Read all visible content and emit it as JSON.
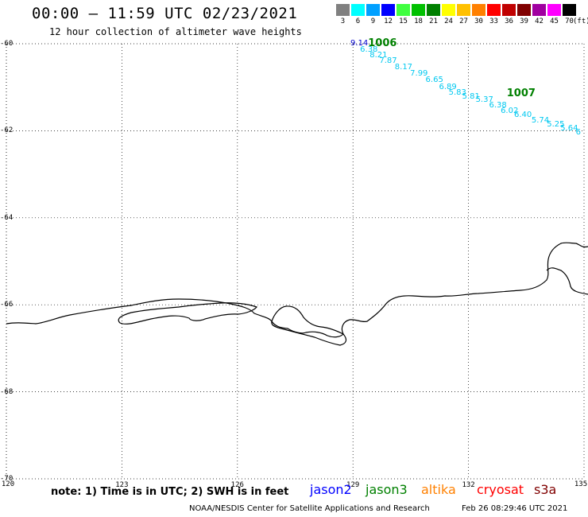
{
  "header": {
    "title": "00:00 – 11:59 UTC 02/23/2021",
    "subtitle": "12 hour collection of altimeter wave heights"
  },
  "legend": {
    "unit": "(ft)",
    "bins": [
      {
        "label": "3",
        "color": "#808080"
      },
      {
        "label": "6",
        "color": "#00ffff"
      },
      {
        "label": "9",
        "color": "#00a0ff"
      },
      {
        "label": "12",
        "color": "#0000ff"
      },
      {
        "label": "15",
        "color": "#40ff40"
      },
      {
        "label": "18",
        "color": "#00c000"
      },
      {
        "label": "21",
        "color": "#008000"
      },
      {
        "label": "24",
        "color": "#ffff00"
      },
      {
        "label": "27",
        "color": "#ffc000"
      },
      {
        "label": "30",
        "color": "#ff8000"
      },
      {
        "label": "33",
        "color": "#ff0000"
      },
      {
        "label": "36",
        "color": "#c00000"
      },
      {
        "label": "39",
        "color": "#800000"
      },
      {
        "label": "42",
        "color": "#a000a0"
      },
      {
        "label": "45",
        "color": "#ff00ff"
      },
      {
        "label": "70",
        "color": "#000000"
      }
    ]
  },
  "map": {
    "lat_labels": [
      "-60",
      "-62",
      "-64",
      "-66",
      "-68",
      "-70"
    ],
    "lon_labels": [
      "120",
      "123",
      "126",
      "129",
      "132",
      "135"
    ],
    "observations": [
      {
        "lon": 129.1,
        "lat": -60.0,
        "text": "9.14",
        "color": "#0000cc"
      },
      {
        "lon": 129.35,
        "lat": -60.15,
        "text": "6.38",
        "color": "#00c8f0"
      },
      {
        "lon": 129.6,
        "lat": -60.28,
        "text": "8.21",
        "color": "#00c8f0"
      },
      {
        "lon": 129.85,
        "lat": -60.4,
        "text": "7.87",
        "color": "#00c8f0"
      },
      {
        "lon": 130.25,
        "lat": -60.55,
        "text": "8.17",
        "color": "#00c8f0"
      },
      {
        "lon": 130.65,
        "lat": -60.7,
        "text": "7.99",
        "color": "#00c8f0"
      },
      {
        "lon": 131.05,
        "lat": -60.85,
        "text": "6.65",
        "color": "#00c8f0"
      },
      {
        "lon": 131.4,
        "lat": -61.0,
        "text": "6.89",
        "color": "#00c8f0"
      },
      {
        "lon": 131.65,
        "lat": -61.13,
        "text": "5.83",
        "color": "#00c8f0"
      },
      {
        "lon": 132.0,
        "lat": -61.22,
        "text": "5.81",
        "color": "#00c8f0"
      },
      {
        "lon": 132.35,
        "lat": -61.3,
        "text": "5.37",
        "color": "#00c8f0"
      },
      {
        "lon": 132.7,
        "lat": -61.42,
        "text": "6.38",
        "color": "#00c8f0"
      },
      {
        "lon": 133.0,
        "lat": -61.55,
        "text": "6.02",
        "color": "#00c8f0"
      },
      {
        "lon": 133.35,
        "lat": -61.65,
        "text": "6.40",
        "color": "#00c8f0"
      },
      {
        "lon": 133.8,
        "lat": -61.78,
        "text": "5.74",
        "color": "#00c8f0"
      },
      {
        "lon": 134.2,
        "lat": -61.87,
        "text": "5.25",
        "color": "#00c8f0"
      },
      {
        "lon": 134.55,
        "lat": -61.95,
        "text": "5.64",
        "color": "#00c8f0"
      },
      {
        "lon": 134.95,
        "lat": -62.05,
        "text": "6",
        "color": "#00c8f0"
      }
    ],
    "pressure": [
      {
        "lon": 129.6,
        "lat": -60.02,
        "text": "1006",
        "color": "#008000"
      },
      {
        "lon": 133.2,
        "lat": -61.17,
        "text": "1007",
        "color": "#008000"
      }
    ]
  },
  "footer": {
    "note": "note: 1) Time is in UTC; 2) SWH is in feet",
    "satellites": [
      {
        "name": "jason2",
        "color": "#0000ff"
      },
      {
        "name": "jason3",
        "color": "#008000"
      },
      {
        "name": "altika",
        "color": "#ff8000"
      },
      {
        "name": "cryosat",
        "color": "#ff0000"
      },
      {
        "name": "s3a",
        "color": "#800000"
      }
    ],
    "credit": "NOAA/NESDIS Center for Satellite Applications and Research",
    "timestamp": "Feb 26 08:29:46 UTC 2021"
  }
}
